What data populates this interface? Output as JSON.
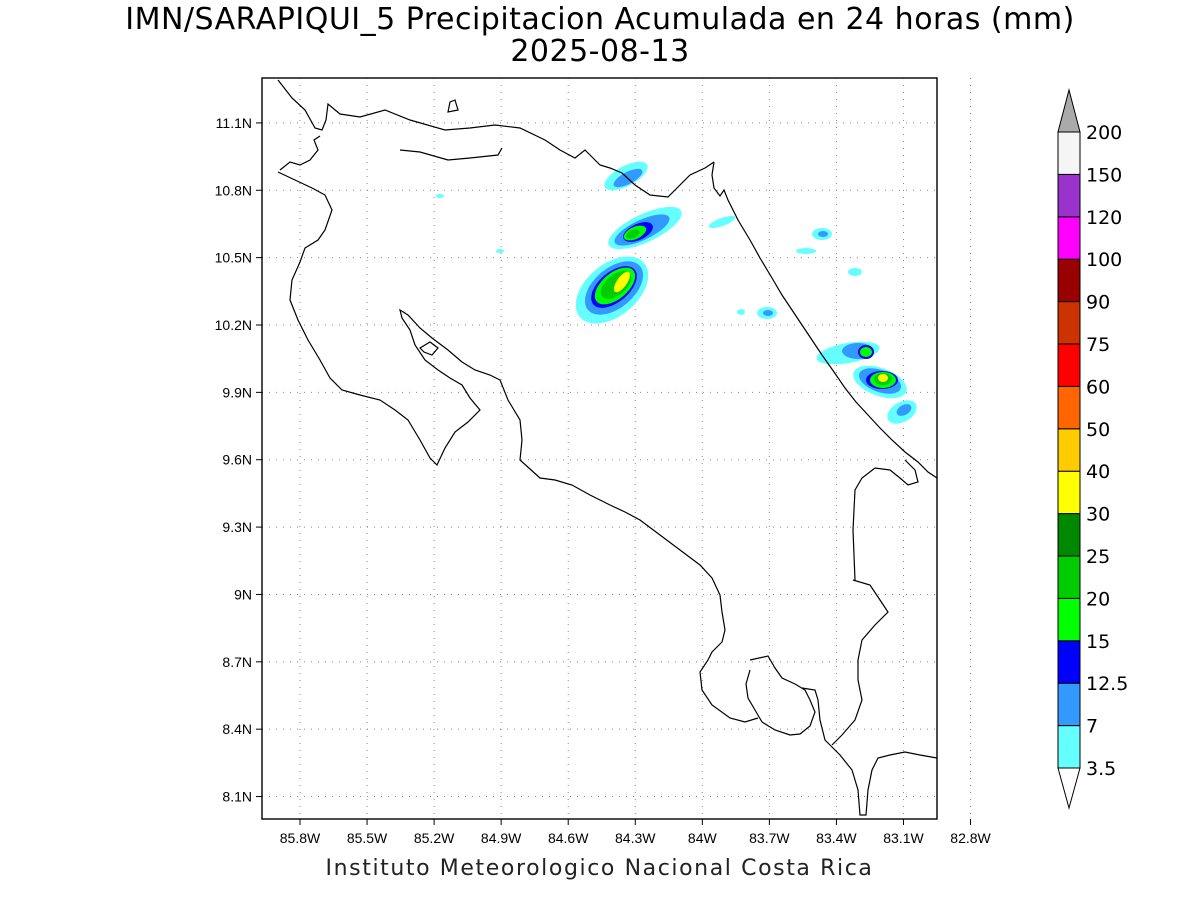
{
  "title": {
    "line1": "IMN/SARAPIQUI_5 Precipitacion Acumulada en 24 horas (mm)",
    "line2": "2025-08-13"
  },
  "credit": "Instituto Meteorologico Nacional Costa Rica",
  "map": {
    "lon_range": [
      -85.97,
      -82.95
    ],
    "lat_range": [
      8.0,
      11.3
    ],
    "lon_ticks": [
      "85.8W",
      "85.5W",
      "85.2W",
      "84.9W",
      "84.6W",
      "84.3W",
      "84W",
      "83.7W",
      "83.4W",
      "83.1W",
      "82.8W"
    ],
    "lon_values": [
      -85.8,
      -85.5,
      -85.2,
      -84.9,
      -84.6,
      -84.3,
      -84.0,
      -83.7,
      -83.4,
      -83.1,
      -82.8
    ],
    "lat_ticks": [
      "11.1N",
      "10.8N",
      "10.5N",
      "10.2N",
      "9.9N",
      "9.6N",
      "9.3N",
      "9N",
      "8.7N",
      "8.4N",
      "8.1N"
    ],
    "lat_values": [
      11.1,
      10.8,
      10.5,
      10.2,
      9.9,
      9.6,
      9.3,
      9.0,
      8.7,
      8.4,
      8.1
    ],
    "grid": "dotted"
  },
  "colorbar": {
    "levels": [
      "3.5",
      "7",
      "12.5",
      "15",
      "20",
      "25",
      "30",
      "40",
      "50",
      "60",
      "75",
      "90",
      "100",
      "120",
      "150",
      "200"
    ],
    "colors": [
      "#66ffff",
      "#3399ff",
      "#0000ff",
      "#00ff00",
      "#00cc00",
      "#008800",
      "#ffff00",
      "#ffcc00",
      "#ff6600",
      "#ff0000",
      "#cc3300",
      "#990000",
      "#ff00ff",
      "#9933cc",
      "#f5f5f5",
      "#aaaaaa"
    ],
    "unit": "mm"
  }
}
